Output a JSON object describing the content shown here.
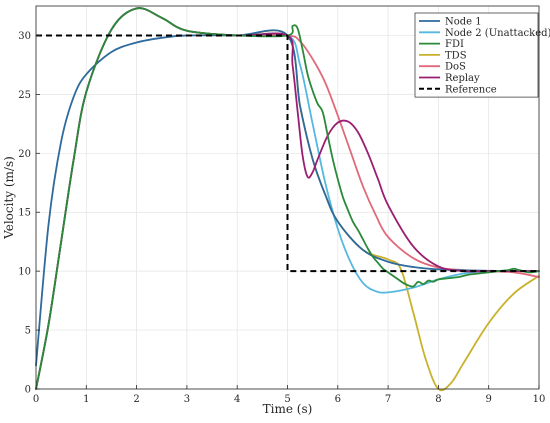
{
  "chart_data": {
    "type": "line",
    "title": "",
    "xlabel": "Time (s)",
    "ylabel": "Velocity (m/s)",
    "xlim": [
      0,
      10
    ],
    "ylim": [
      0,
      32.5
    ],
    "xticks": [
      0,
      1,
      2,
      3,
      4,
      5,
      6,
      7,
      8,
      9,
      10
    ],
    "yticks": [
      0,
      5,
      10,
      15,
      20,
      25,
      30
    ],
    "grid": true,
    "legend_position": "top-right",
    "series": [
      {
        "name": "Node 1",
        "color": "#2e6a9c",
        "dash": "solid",
        "x": [
          0,
          0.25,
          0.5,
          0.75,
          1,
          1.5,
          2,
          2.5,
          3,
          4,
          5,
          5.25,
          5.5,
          5.75,
          6,
          6.5,
          7,
          7.5,
          8,
          9,
          10
        ],
        "y": [
          2,
          14,
          21,
          24.8,
          26.7,
          28.6,
          29.4,
          29.8,
          30,
          30,
          30,
          24,
          19.5,
          16.5,
          14.2,
          11.8,
          10.8,
          10.35,
          10.15,
          10.03,
          10
        ]
      },
      {
        "name": "Node 2 (Unattacked)",
        "color": "#55b8e0",
        "dash": "solid",
        "x": [
          0,
          0.25,
          0.5,
          0.75,
          1,
          1.5,
          2,
          2.5,
          3,
          4,
          5,
          5.25,
          5.5,
          5.75,
          6,
          6.25,
          6.5,
          6.75,
          7,
          7.5,
          8,
          8.5,
          9,
          10
        ],
        "y": [
          0,
          5.5,
          12.5,
          19.5,
          25.2,
          30.5,
          32.3,
          31.5,
          30.4,
          30,
          30,
          27.5,
          22.5,
          17.5,
          13.6,
          10.8,
          9,
          8.3,
          8.2,
          8.6,
          9.3,
          9.8,
          10,
          10
        ]
      },
      {
        "name": "FDI",
        "color": "#2a8a3a",
        "dash": "solid",
        "x": [
          0,
          0.25,
          0.5,
          0.75,
          1,
          1.5,
          2,
          2.5,
          3,
          4,
          5,
          5.1,
          5.2,
          5.3,
          5.4,
          5.5,
          5.6,
          5.7,
          5.8,
          5.9,
          6,
          6.1,
          6.2,
          6.3,
          6.4,
          6.5,
          6.6,
          6.7,
          6.8,
          6.9,
          7,
          7.1,
          7.2,
          7.3,
          7.4,
          7.5,
          7.6,
          7.7,
          7.8,
          7.9,
          8,
          8.2,
          8.4,
          8.6,
          8.8,
          9,
          9.2,
          9.4,
          9.5,
          9.6,
          9.8,
          10
        ],
        "y": [
          0,
          5.5,
          12.5,
          19.5,
          25.2,
          30.5,
          32.3,
          31.5,
          30.4,
          30,
          30,
          30.8,
          30.6,
          28.8,
          26.7,
          25.3,
          24.2,
          23.5,
          21.5,
          19.5,
          17.8,
          16.3,
          15.2,
          14.2,
          13.5,
          12.7,
          11.9,
          11.2,
          10.7,
          10.2,
          9.9,
          9.6,
          9.3,
          9,
          8.8,
          8.7,
          9.1,
          8.9,
          9.2,
          9.1,
          9.3,
          9.4,
          9.5,
          9.7,
          9.8,
          9.9,
          10,
          10.1,
          10.2,
          10.1,
          9.9,
          10
        ]
      },
      {
        "name": "TDS",
        "color": "#c9b12c",
        "dash": "solid",
        "x": [
          0,
          0.25,
          0.5,
          0.75,
          1,
          1.5,
          2,
          2.5,
          3,
          4,
          5,
          5.25,
          5.5,
          5.75,
          6,
          6.5,
          7,
          7.25,
          7.5,
          7.75,
          8,
          8.25,
          8.5,
          9,
          9.5,
          10
        ],
        "y": [
          0,
          5.5,
          12.5,
          19.5,
          25.2,
          30.5,
          32.3,
          31.5,
          30.4,
          30,
          30,
          24,
          19.5,
          16.5,
          14.2,
          11.8,
          11,
          10.2,
          6.5,
          2.5,
          0,
          0.5,
          2.2,
          5.6,
          8.1,
          9.6
        ]
      },
      {
        "name": "DoS",
        "color": "#e06a7a",
        "dash": "solid",
        "x": [
          0,
          0.25,
          0.5,
          0.75,
          1,
          1.5,
          2,
          2.5,
          3,
          4,
          5,
          5.25,
          5.5,
          5.75,
          6,
          6.25,
          6.5,
          6.75,
          7,
          7.5,
          8,
          8.5,
          9,
          9.5,
          10
        ],
        "y": [
          0,
          5.5,
          12.5,
          19.5,
          25.2,
          30.5,
          32.3,
          31.5,
          30.4,
          30,
          30,
          29.5,
          28,
          26,
          23.2,
          20.2,
          17.2,
          14.8,
          12.9,
          11.1,
          10.3,
          10.1,
          10,
          9.9,
          9.5
        ]
      },
      {
        "name": "Replay",
        "color": "#9b1d72",
        "dash": "solid",
        "x": [
          0,
          0.25,
          0.5,
          0.75,
          1,
          1.5,
          2,
          2.5,
          3,
          4,
          5,
          5.1,
          5.2,
          5.3,
          5.4,
          5.5,
          5.6,
          5.8,
          6,
          6.2,
          6.4,
          6.6,
          6.8,
          7,
          7.5,
          8,
          8.5,
          9,
          10
        ],
        "y": [
          0,
          5.5,
          12.5,
          19.5,
          25.2,
          30.5,
          32.3,
          31.5,
          30.4,
          30,
          30,
          27.5,
          23.6,
          19.8,
          18,
          18.4,
          19.5,
          21.5,
          22.6,
          22.7,
          21.8,
          20,
          17.8,
          15.6,
          12.1,
          10.4,
          10,
          10,
          10
        ]
      },
      {
        "name": "Reference",
        "color": "#000000",
        "dash": "dashed",
        "x": [
          0,
          5,
          5,
          10
        ],
        "y": [
          30,
          30,
          10,
          10
        ]
      }
    ]
  }
}
